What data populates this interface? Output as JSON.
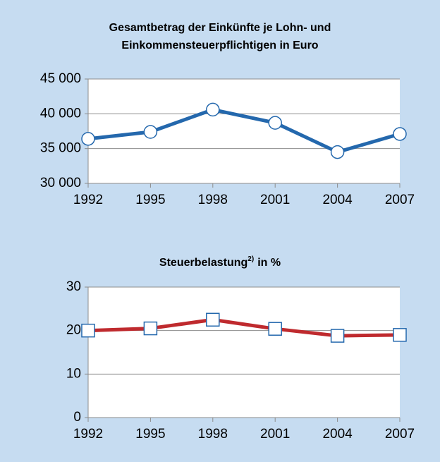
{
  "chart_data": [
    {
      "type": "line",
      "title": [
        "Gesamtbetrag der Einkünfte je Lohn- und",
        "Einkommensteuerpflichtigen in Euro"
      ],
      "categories": [
        "1992",
        "1995",
        "1998",
        "2001",
        "2004",
        "2007"
      ],
      "series": [
        {
          "color": "#2468ad",
          "marker": "circle",
          "values": [
            36400,
            37400,
            40600,
            38700,
            34500,
            37100
          ]
        }
      ],
      "ylim": [
        30000,
        45000
      ],
      "yticks": [
        {
          "value": 30000,
          "label": "30 000"
        },
        {
          "value": 35000,
          "label": "35 000"
        },
        {
          "value": 40000,
          "label": "40 000"
        },
        {
          "value": 45000,
          "label": "45 000"
        }
      ],
      "grid": true
    },
    {
      "type": "line",
      "title": [
        "Steuerbelastung"
      ],
      "title_note": "2)",
      "title_suffix": "in %",
      "categories": [
        "1992",
        "1995",
        "1998",
        "2001",
        "2004",
        "2007"
      ],
      "series": [
        {
          "color": "#bf2a2e",
          "marker": "square",
          "values": [
            20,
            20.5,
            22.5,
            20.4,
            18.8,
            19
          ]
        }
      ],
      "ylim": [
        0,
        30
      ],
      "yticks": [
        0,
        10,
        20,
        30
      ],
      "grid": true
    }
  ]
}
